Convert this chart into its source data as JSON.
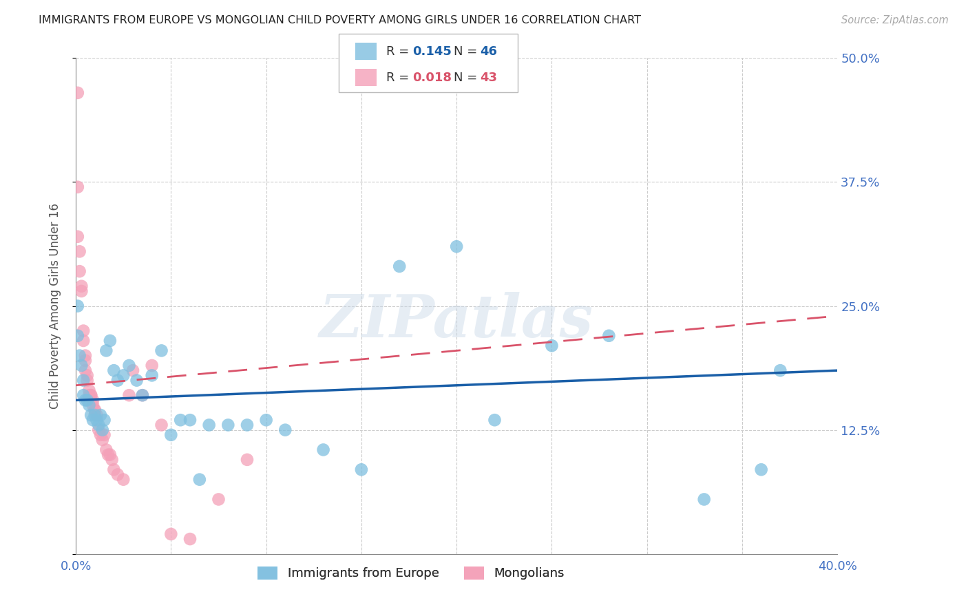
{
  "title": "IMMIGRANTS FROM EUROPE VS MONGOLIAN CHILD POVERTY AMONG GIRLS UNDER 16 CORRELATION CHART",
  "source": "Source: ZipAtlas.com",
  "ylabel": "Child Poverty Among Girls Under 16",
  "xlim": [
    0.0,
    0.4
  ],
  "ylim": [
    0.0,
    0.5
  ],
  "yticks": [
    0.0,
    0.125,
    0.25,
    0.375,
    0.5
  ],
  "ytick_labels": [
    "",
    "12.5%",
    "25.0%",
    "37.5%",
    "50.0%"
  ],
  "xticks": [
    0.0,
    0.05,
    0.1,
    0.15,
    0.2,
    0.25,
    0.3,
    0.35,
    0.4
  ],
  "xtick_labels": [
    "0.0%",
    "",
    "",
    "",
    "",
    "",
    "",
    "",
    "40.0%"
  ],
  "legend_r1": "0.145",
  "legend_n1": "46",
  "legend_r2": "0.018",
  "legend_n2": "43",
  "blue_color": "#7fbfdf",
  "pink_color": "#f4a0b8",
  "blue_line_color": "#1a5fa8",
  "pink_line_color": "#d9536a",
  "axis_color": "#4472C4",
  "title_color": "#222222",
  "grid_color": "#cccccc",
  "blue_scatter_x": [
    0.001,
    0.001,
    0.002,
    0.003,
    0.004,
    0.004,
    0.005,
    0.006,
    0.007,
    0.008,
    0.009,
    0.01,
    0.011,
    0.012,
    0.013,
    0.014,
    0.015,
    0.016,
    0.018,
    0.02,
    0.022,
    0.025,
    0.028,
    0.032,
    0.035,
    0.04,
    0.045,
    0.05,
    0.055,
    0.06,
    0.065,
    0.07,
    0.08,
    0.09,
    0.1,
    0.11,
    0.13,
    0.15,
    0.17,
    0.2,
    0.22,
    0.25,
    0.28,
    0.33,
    0.36,
    0.37
  ],
  "blue_scatter_y": [
    0.25,
    0.22,
    0.2,
    0.19,
    0.175,
    0.16,
    0.155,
    0.155,
    0.15,
    0.14,
    0.135,
    0.14,
    0.135,
    0.13,
    0.14,
    0.125,
    0.135,
    0.205,
    0.215,
    0.185,
    0.175,
    0.18,
    0.19,
    0.175,
    0.16,
    0.18,
    0.205,
    0.12,
    0.135,
    0.135,
    0.075,
    0.13,
    0.13,
    0.13,
    0.135,
    0.125,
    0.105,
    0.085,
    0.29,
    0.31,
    0.135,
    0.21,
    0.22,
    0.055,
    0.085,
    0.185
  ],
  "pink_scatter_x": [
    0.001,
    0.001,
    0.001,
    0.002,
    0.002,
    0.003,
    0.003,
    0.004,
    0.004,
    0.005,
    0.005,
    0.005,
    0.006,
    0.006,
    0.007,
    0.007,
    0.008,
    0.008,
    0.009,
    0.009,
    0.01,
    0.01,
    0.011,
    0.012,
    0.013,
    0.014,
    0.015,
    0.016,
    0.017,
    0.018,
    0.019,
    0.02,
    0.022,
    0.025,
    0.028,
    0.03,
    0.035,
    0.04,
    0.045,
    0.05,
    0.06,
    0.075,
    0.09
  ],
  "pink_scatter_y": [
    0.465,
    0.37,
    0.32,
    0.305,
    0.285,
    0.27,
    0.265,
    0.225,
    0.215,
    0.2,
    0.195,
    0.185,
    0.18,
    0.175,
    0.165,
    0.16,
    0.16,
    0.16,
    0.155,
    0.15,
    0.145,
    0.145,
    0.14,
    0.125,
    0.12,
    0.115,
    0.12,
    0.105,
    0.1,
    0.1,
    0.095,
    0.085,
    0.08,
    0.075,
    0.16,
    0.185,
    0.16,
    0.19,
    0.13,
    0.02,
    0.015,
    0.055,
    0.095
  ],
  "watermark": "ZIPatlas",
  "background_color": "#ffffff"
}
